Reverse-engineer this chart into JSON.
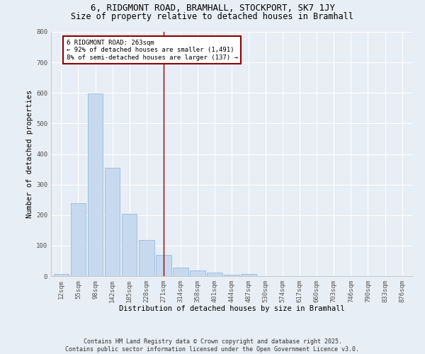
{
  "title": "6, RIDGMONT ROAD, BRAMHALL, STOCKPORT, SK7 1JY",
  "subtitle": "Size of property relative to detached houses in Bramhall",
  "xlabel": "Distribution of detached houses by size in Bramhall",
  "ylabel": "Number of detached properties",
  "bar_color": "#c6d9ee",
  "bar_edge_color": "#8ab4d4",
  "background_color": "#e8eef5",
  "grid_color": "#ffffff",
  "categories": [
    "12sqm",
    "55sqm",
    "98sqm",
    "142sqm",
    "185sqm",
    "228sqm",
    "271sqm",
    "314sqm",
    "358sqm",
    "401sqm",
    "444sqm",
    "487sqm",
    "530sqm",
    "574sqm",
    "617sqm",
    "660sqm",
    "703sqm",
    "746sqm",
    "790sqm",
    "833sqm",
    "876sqm"
  ],
  "values": [
    8,
    238,
    598,
    355,
    205,
    118,
    70,
    28,
    18,
    12,
    4,
    6,
    0,
    0,
    0,
    0,
    0,
    0,
    0,
    0,
    0
  ],
  "ylim": [
    0,
    800
  ],
  "yticks": [
    0,
    100,
    200,
    300,
    400,
    500,
    600,
    700,
    800
  ],
  "vline_x": 6,
  "vline_color": "#8b0000",
  "annotation_text": "6 RIDGMONT ROAD: 263sqm\n← 92% of detached houses are smaller (1,491)\n8% of semi-detached houses are larger (137) →",
  "annotation_box_color": "#8b0000",
  "annotation_text_color": "#000000",
  "footer_text": "Contains HM Land Registry data © Crown copyright and database right 2025.\nContains public sector information licensed under the Open Government Licence v3.0.",
  "title_fontsize": 9,
  "subtitle_fontsize": 8.5,
  "axis_label_fontsize": 7.5,
  "tick_fontsize": 6.5,
  "annotation_fontsize": 6.5,
  "footer_fontsize": 6
}
